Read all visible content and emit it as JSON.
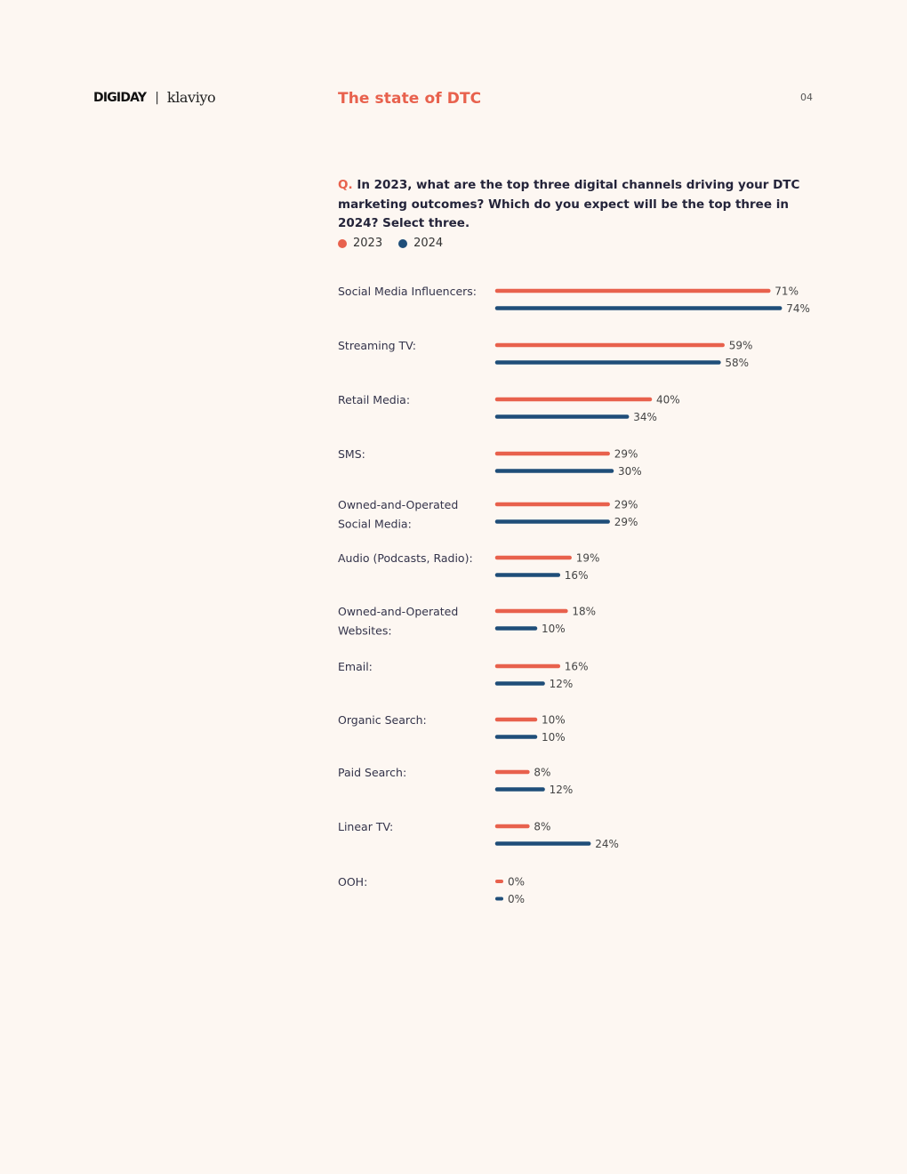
{
  "header": {
    "logo_digiday": "DIGIDAY",
    "separator": "|",
    "logo_klaviyo": "klaviyo",
    "title": "The state of DTC",
    "page_number": "04"
  },
  "question": {
    "prefix": "Q.",
    "text": "In 2023, what are the top three digital channels driving your DTC marketing outcomes? Which do you expect will be the top three in 2024? Select three."
  },
  "colors": {
    "accent": "#e8614d",
    "series_2023": "#e8614d",
    "series_2024": "#1f4e79"
  },
  "chart_data": {
    "type": "bar",
    "orientation": "horizontal",
    "value_suffix": "%",
    "legend_position": "top-left",
    "grid": false,
    "xlim": [
      0,
      100
    ],
    "categories": [
      [
        "Social Media Influencers:"
      ],
      [
        "Streaming TV:"
      ],
      [
        "Retail Media:"
      ],
      [
        "SMS:"
      ],
      [
        "Owned-and-Operated",
        "Social Media:"
      ],
      [
        "Audio (Podcasts, Radio):"
      ],
      [
        "Owned-and-Operated",
        "Websites:"
      ],
      [
        "Email:"
      ],
      [
        "Organic Search:"
      ],
      [
        "Paid Search:"
      ],
      [
        "Linear TV:"
      ],
      [
        "OOH:"
      ]
    ],
    "series": [
      {
        "name": "2023",
        "values": [
          71,
          59,
          40,
          29,
          29,
          19,
          18,
          16,
          10,
          8,
          8,
          0
        ]
      },
      {
        "name": "2024",
        "values": [
          74,
          58,
          34,
          30,
          29,
          16,
          10,
          12,
          10,
          12,
          24,
          0
        ]
      }
    ]
  }
}
